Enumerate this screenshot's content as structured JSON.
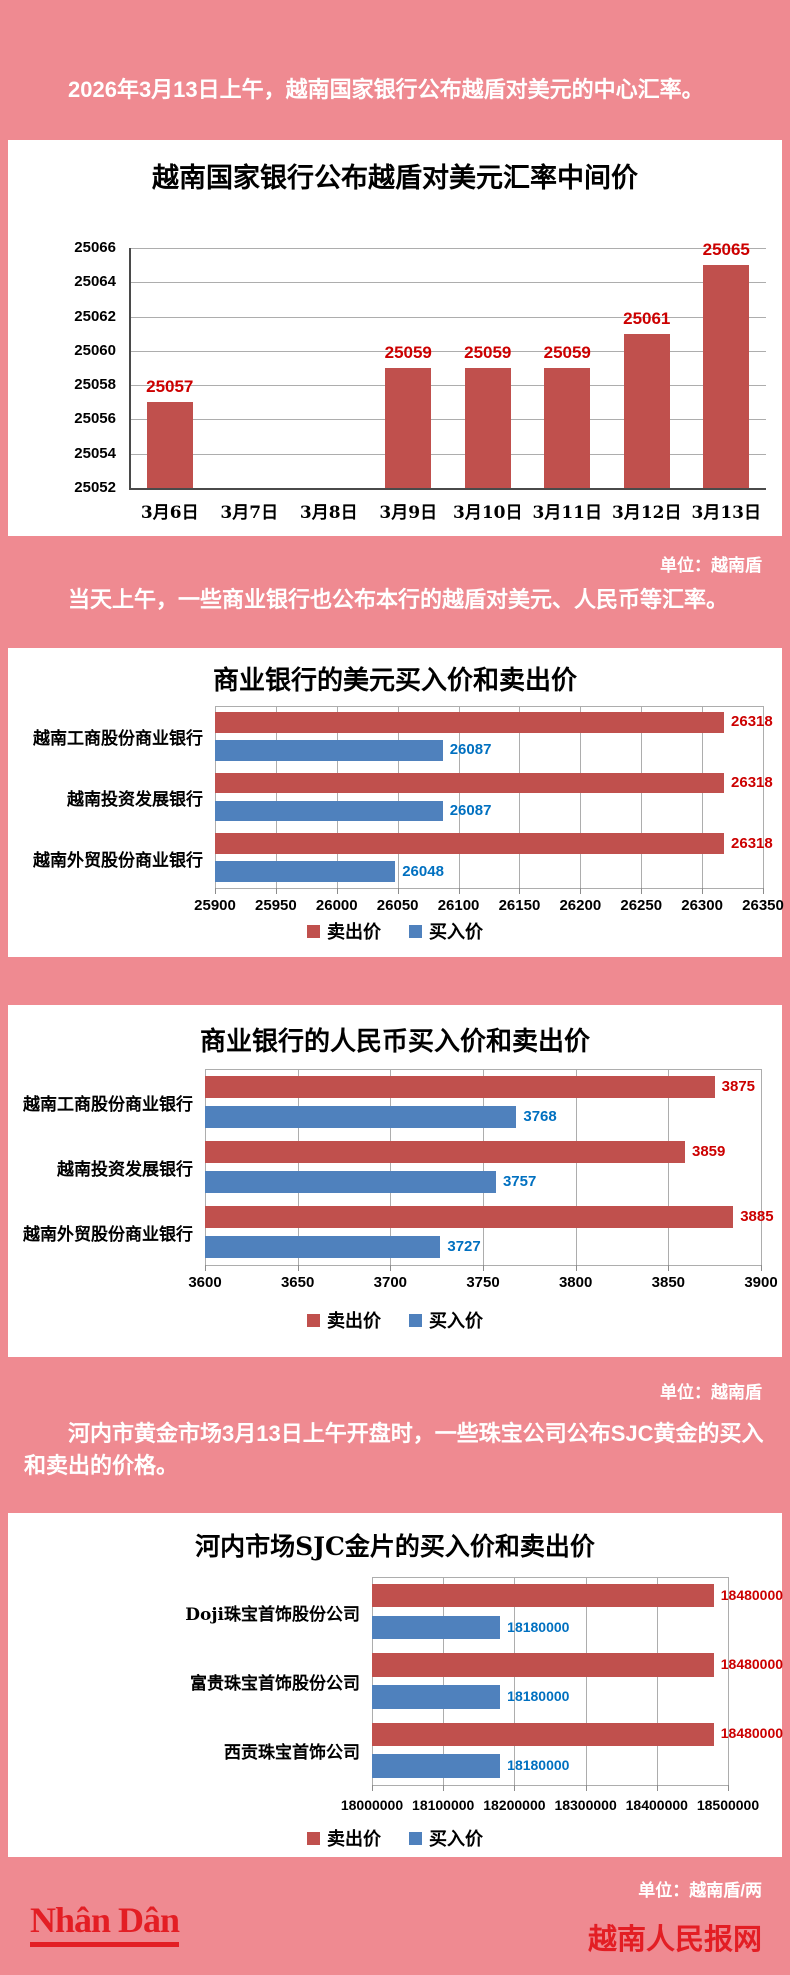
{
  "page": {
    "background_color": "#ef8a91",
    "intro_paragraphs": [
      "2026年3月13日上午，越南国家银行公布越盾对美元的中心汇率。",
      "当天上午，一些商业银行也公布本行的越盾对美元、人民币等汇率。",
      "河内市黄金市场3月13日上午开盘时，一些珠宝公司公布SJC黄金的买入和卖出的价格。"
    ],
    "unit_notes": [
      "单位：越南盾",
      "单位：越南盾",
      "单位：越南盾/两"
    ],
    "footer": {
      "logo_text": "Nhân Dân",
      "site_name": "越南人民报网",
      "brand_color": "#e31e24"
    }
  },
  "colors": {
    "sell_bar": "#c0504d",
    "buy_bar": "#4f81bd",
    "sell_label": "#cc0000",
    "buy_label": "#0070c0",
    "gridline": "#adadad",
    "axis": "#4a4a4a"
  },
  "chart_data": [
    {
      "type": "bar",
      "title": "越南国家银行公布越盾对美元汇率中间价",
      "categories": [
        "3月6日",
        "3月7日",
        "3月8日",
        "3月9日",
        "3月10日",
        "3月11日",
        "3月12日",
        "3月13日"
      ],
      "values": [
        25057,
        null,
        null,
        25059,
        25059,
        25059,
        25061,
        25065
      ],
      "ylim": [
        25052,
        25066
      ],
      "ytick_step": 2,
      "bar_color": "#c0504d",
      "value_label_color": "#cc0000",
      "grid": true,
      "legend": "none"
    },
    {
      "type": "bar-horizontal",
      "title": "商业银行的美元买入价和卖出价",
      "categories": [
        "越南工商股份商业银行",
        "越南投资发展银行",
        "越南外贸股份商业银行"
      ],
      "series": [
        {
          "name": "卖出价",
          "color": "#c0504d",
          "label_color": "#cc0000",
          "values": [
            26318,
            26318,
            26318
          ]
        },
        {
          "name": "买入价",
          "color": "#4f81bd",
          "label_color": "#0070c0",
          "values": [
            26087,
            26087,
            26048
          ]
        }
      ],
      "xlim": [
        25900,
        26350
      ],
      "xtick_step": 50,
      "grid": true,
      "legend_position": "bottom"
    },
    {
      "type": "bar-horizontal",
      "title": "商业银行的人民币买入价和卖出价",
      "categories": [
        "越南工商股份商业银行",
        "越南投资发展银行",
        "越南外贸股份商业银行"
      ],
      "series": [
        {
          "name": "卖出价",
          "color": "#c0504d",
          "label_color": "#cc0000",
          "values": [
            3875,
            3859,
            3885
          ]
        },
        {
          "name": "买入价",
          "color": "#4f81bd",
          "label_color": "#0070c0",
          "values": [
            3768,
            3757,
            3727
          ]
        }
      ],
      "xlim": [
        3600,
        3900
      ],
      "xtick_step": 50,
      "grid": true,
      "legend_position": "bottom"
    },
    {
      "type": "bar-horizontal",
      "title": "河内市场SJC金片的买入价和卖出价",
      "categories": [
        "Doji珠宝首饰股份公司",
        "富贵珠宝首饰股份公司",
        "西贡珠宝首饰公司"
      ],
      "series": [
        {
          "name": "卖出价",
          "color": "#c0504d",
          "label_color": "#cc0000",
          "values": [
            18480000,
            18480000,
            18480000
          ]
        },
        {
          "name": "买入价",
          "color": "#4f81bd",
          "label_color": "#0070c0",
          "values": [
            18180000,
            18180000,
            18180000
          ]
        }
      ],
      "xlim": [
        18000000,
        18500000
      ],
      "xtick_step": 100000,
      "grid": true,
      "legend_position": "bottom"
    }
  ]
}
